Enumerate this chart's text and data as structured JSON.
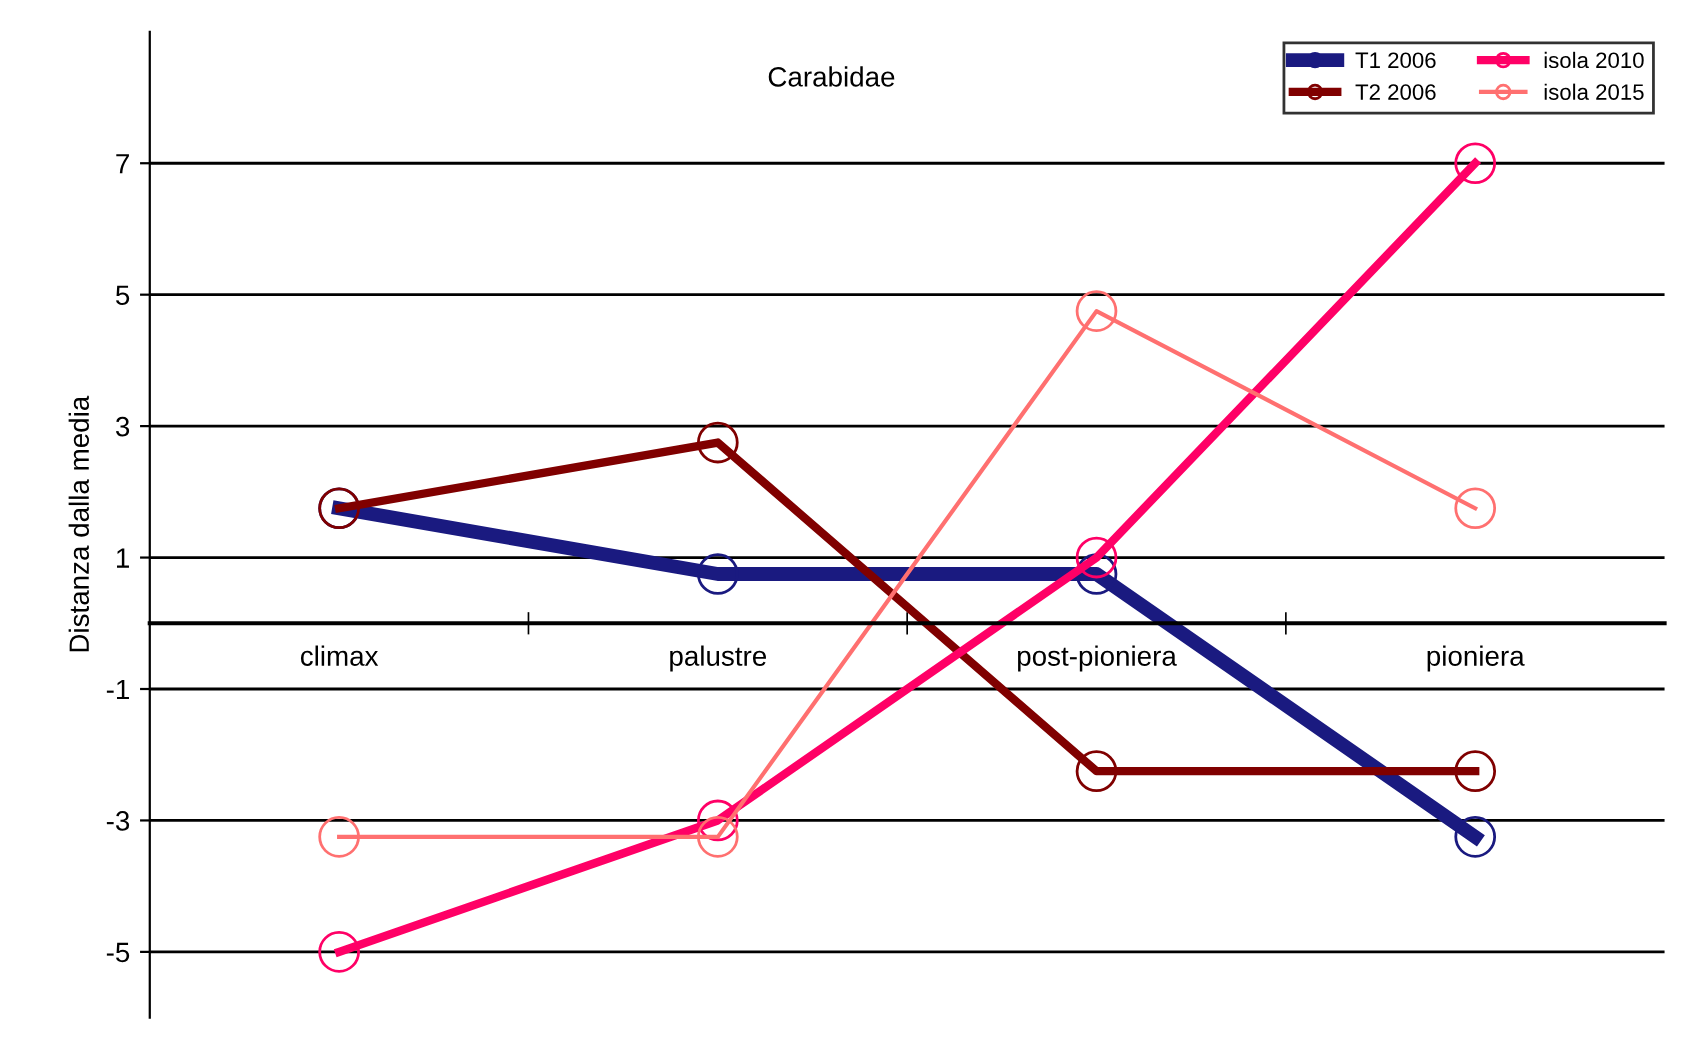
{
  "chart_data": {
    "type": "line",
    "title": "Carabidae",
    "ylabel": "Distanza dalla media",
    "categories": [
      "climax",
      "palustre",
      "post-pioniera",
      "pioniera"
    ],
    "series": [
      {
        "name": "T1 2006",
        "color": "#1a1a80",
        "values": [
          1.75,
          0.75,
          0.75,
          -3.25
        ]
      },
      {
        "name": "T2 2006",
        "color": "#800000",
        "values": [
          1.75,
          2.75,
          -2.25,
          -2.25
        ]
      },
      {
        "name": "isola 2010",
        "color": "#ff0066",
        "values": [
          -5,
          -3,
          1,
          7
        ]
      },
      {
        "name": "isola 2015",
        "color": "#ff7070",
        "values": [
          -3.25,
          -3.25,
          4.75,
          1.75
        ]
      }
    ],
    "ylim": [
      -6,
      9
    ],
    "yticks": [
      -5,
      -3,
      -1,
      1,
      3,
      5,
      7
    ],
    "grid": "y",
    "legend": "top right",
    "marker": "circle",
    "line_style": "solid"
  }
}
